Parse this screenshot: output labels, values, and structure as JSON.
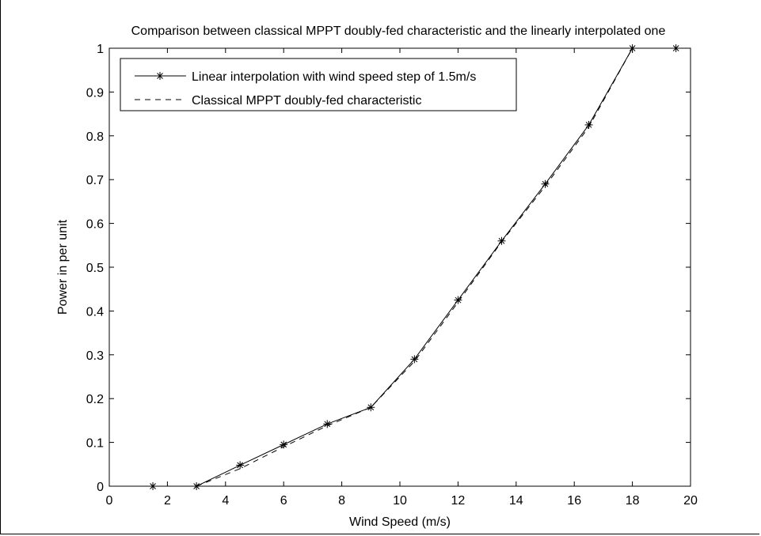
{
  "chart_data": {
    "type": "line",
    "title": "Comparison between classical MPPT doubly-fed characteristic and the linearly interpolated one",
    "xlabel": "Wind Speed (m/s)",
    "ylabel": "Power in per unit",
    "xlim": [
      0,
      20
    ],
    "ylim": [
      0,
      1
    ],
    "xticks": [
      "0",
      "2",
      "4",
      "6",
      "8",
      "10",
      "12",
      "14",
      "16",
      "18",
      "20"
    ],
    "yticks": [
      "0",
      "0.1",
      "0.2",
      "0.3",
      "0.4",
      "0.5",
      "0.6",
      "0.7",
      "0.8",
      "0.9",
      "1"
    ],
    "grid": false,
    "legend_position": "top-left",
    "series": [
      {
        "name": "Linear interpolation with wind speed step of 1.5m/s",
        "style": "solid-star",
        "color": "#000000",
        "x": [
          1.5,
          3,
          4.5,
          6,
          7.5,
          9,
          10.5,
          12,
          13.5,
          15,
          16.5,
          18,
          19.5
        ],
        "y": [
          0,
          0,
          0.048,
          0.095,
          0.142,
          0.18,
          0.29,
          0.425,
          0.56,
          0.69,
          0.825,
          1.0,
          1.0
        ]
      },
      {
        "name": "Classical MPPT doubly-fed characteristic",
        "style": "dashed",
        "color": "#000000",
        "x": [
          3,
          4.5,
          6,
          7.5,
          9,
          10.5,
          12,
          13.5,
          15,
          16.5,
          18
        ],
        "y": [
          0,
          0.04,
          0.09,
          0.138,
          0.18,
          0.285,
          0.42,
          0.558,
          0.685,
          0.82,
          1.0
        ]
      }
    ]
  }
}
